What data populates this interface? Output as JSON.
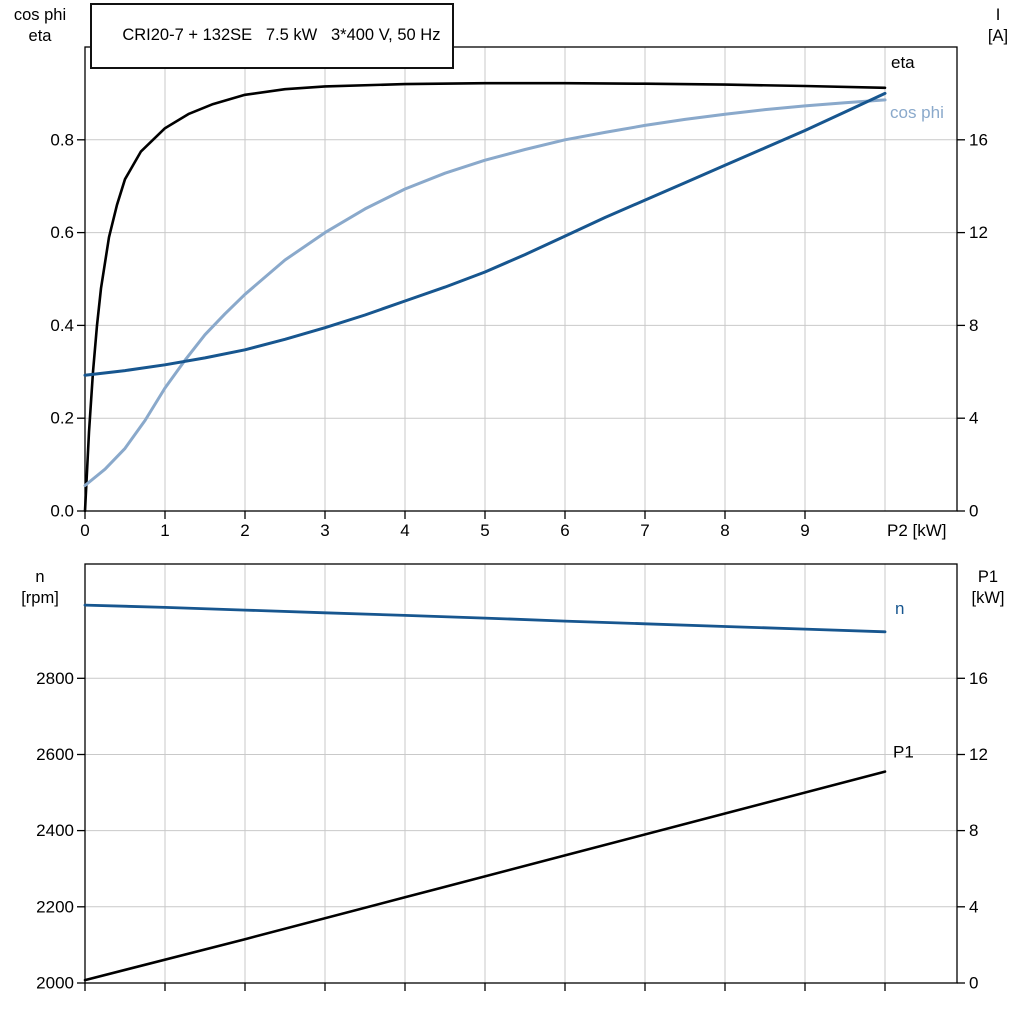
{
  "style": {
    "grid_color": "#c9c9c9",
    "frame_color": "#000000",
    "eta_color": "#000000",
    "cos_phi_color": "#8aa9cb",
    "current_color": "#17568f",
    "speed_color": "#17568f",
    "p1_color": "#000000"
  },
  "chart_data": [
    {
      "type": "line",
      "title": "CRI20-7 + 132SE   7.5 kW   3*400 V, 50 Hz",
      "x_axis": {
        "min": 0,
        "max": 10.9,
        "tick_values": [
          0,
          1,
          2,
          3,
          4,
          5,
          6,
          7,
          8,
          9
        ],
        "tick_labels": [
          "0",
          "1",
          "2",
          "3",
          "4",
          "5",
          "6",
          "7",
          "8",
          "9"
        ],
        "grid_values": [
          1,
          2,
          3,
          4,
          5,
          6,
          7,
          8,
          9,
          10
        ],
        "end_label": "P2 [kW]"
      },
      "left_axis": {
        "title_lines": [
          "cos phi",
          "eta"
        ],
        "min": 0,
        "max": 1.0,
        "tick_values": [
          0,
          0.2,
          0.4,
          0.6,
          0.8
        ],
        "tick_labels": [
          "0.0",
          "0.2",
          "0.4",
          "0.6",
          "0.8"
        ]
      },
      "right_axis": {
        "title_lines": [
          "I",
          "[A]"
        ],
        "min": 0,
        "max": 20,
        "tick_values": [
          0,
          4,
          8,
          12,
          16
        ],
        "tick_labels": [
          "0",
          "4",
          "8",
          "12",
          "16"
        ]
      },
      "grid": true,
      "series": [
        {
          "name": "eta",
          "axis": "left",
          "color": "#000000",
          "width": 2.6,
          "label": "eta",
          "label_offset": [
            6,
            -20
          ],
          "points": [
            [
              0,
              0
            ],
            [
              0.05,
              0.17
            ],
            [
              0.1,
              0.3
            ],
            [
              0.15,
              0.4
            ],
            [
              0.2,
              0.48
            ],
            [
              0.3,
              0.59
            ],
            [
              0.4,
              0.66
            ],
            [
              0.5,
              0.715
            ],
            [
              0.7,
              0.775
            ],
            [
              1,
              0.825
            ],
            [
              1.3,
              0.856
            ],
            [
              1.6,
              0.877
            ],
            [
              2,
              0.897
            ],
            [
              2.5,
              0.909
            ],
            [
              3,
              0.915
            ],
            [
              4,
              0.92
            ],
            [
              5,
              0.922
            ],
            [
              6,
              0.922
            ],
            [
              7,
              0.921
            ],
            [
              8,
              0.919
            ],
            [
              9,
              0.916
            ],
            [
              10,
              0.912
            ]
          ]
        },
        {
          "name": "cos phi",
          "axis": "left",
          "color": "#8aa9cb",
          "width": 3,
          "label": "cos phi",
          "label_offset": [
            5,
            18
          ],
          "points": [
            [
              0,
              0.055
            ],
            [
              0.25,
              0.09
            ],
            [
              0.5,
              0.135
            ],
            [
              0.75,
              0.195
            ],
            [
              1,
              0.265
            ],
            [
              1.25,
              0.325
            ],
            [
              1.5,
              0.38
            ],
            [
              1.75,
              0.425
            ],
            [
              2,
              0.467
            ],
            [
              2.5,
              0.541
            ],
            [
              3,
              0.6
            ],
            [
              3.5,
              0.651
            ],
            [
              4,
              0.694
            ],
            [
              4.5,
              0.728
            ],
            [
              5,
              0.756
            ],
            [
              5.5,
              0.779
            ],
            [
              6,
              0.8
            ],
            [
              6.5,
              0.816
            ],
            [
              7,
              0.831
            ],
            [
              7.5,
              0.844
            ],
            [
              8,
              0.855
            ],
            [
              8.5,
              0.865
            ],
            [
              9,
              0.873
            ],
            [
              9.5,
              0.88
            ],
            [
              10,
              0.886
            ]
          ]
        },
        {
          "name": "I",
          "axis": "right",
          "color": "#17568f",
          "width": 3,
          "label": null,
          "label_offset": [
            0,
            0
          ],
          "points": [
            [
              0,
              5.85
            ],
            [
              0.5,
              6.05
            ],
            [
              1,
              6.3
            ],
            [
              1.5,
              6.6
            ],
            [
              2,
              6.95
            ],
            [
              2.5,
              7.4
            ],
            [
              3,
              7.9
            ],
            [
              3.5,
              8.45
            ],
            [
              4,
              9.05
            ],
            [
              4.5,
              9.65
            ],
            [
              5,
              10.3
            ],
            [
              5.5,
              11.05
            ],
            [
              6,
              11.85
            ],
            [
              6.5,
              12.65
            ],
            [
              7,
              13.4
            ],
            [
              7.5,
              14.15
            ],
            [
              8,
              14.9
            ],
            [
              8.5,
              15.65
            ],
            [
              9,
              16.4
            ],
            [
              9.5,
              17.2
            ],
            [
              10,
              18
            ]
          ]
        }
      ]
    },
    {
      "type": "line",
      "title": "",
      "x_axis": {
        "min": 0,
        "max": 10.9,
        "tick_values": [
          0,
          1,
          2,
          3,
          4,
          5,
          6,
          7,
          8,
          9,
          10
        ],
        "tick_labels": [],
        "grid_values": [
          1,
          2,
          3,
          4,
          5,
          6,
          7,
          8,
          9,
          10
        ],
        "end_label": null
      },
      "left_axis": {
        "title_lines": [
          "n",
          "[rpm]"
        ],
        "min": 2000,
        "max": 3100,
        "tick_values": [
          2000,
          2200,
          2400,
          2600,
          2800
        ],
        "tick_labels": [
          "2000",
          "2200",
          "2400",
          "2600",
          "2800"
        ]
      },
      "right_axis": {
        "title_lines": [
          "P1",
          "[kW]"
        ],
        "min": 0,
        "max": 22,
        "tick_values": [
          0,
          4,
          8,
          12,
          16
        ],
        "tick_labels": [
          "0",
          "4",
          "8",
          "12",
          "16"
        ]
      },
      "grid": true,
      "series": [
        {
          "name": "n",
          "axis": "left",
          "color": "#17568f",
          "width": 2.8,
          "label": "n",
          "label_offset": [
            10,
            -18
          ],
          "points": [
            [
              0,
              2992
            ],
            [
              1,
              2986
            ],
            [
              2,
              2979
            ],
            [
              3,
              2972
            ],
            [
              4,
              2965
            ],
            [
              5,
              2958
            ],
            [
              6,
              2950
            ],
            [
              7,
              2943
            ],
            [
              8,
              2936
            ],
            [
              9,
              2929
            ],
            [
              10,
              2922
            ]
          ]
        },
        {
          "name": "P1",
          "axis": "right",
          "color": "#000000",
          "width": 2.6,
          "label": "P1",
          "label_offset": [
            8,
            -14
          ],
          "points": [
            [
              0,
              0.15
            ],
            [
              2,
              2.3
            ],
            [
              4,
              4.5
            ],
            [
              6,
              6.7
            ],
            [
              8,
              8.9
            ],
            [
              10,
              11.1
            ]
          ]
        }
      ]
    }
  ]
}
